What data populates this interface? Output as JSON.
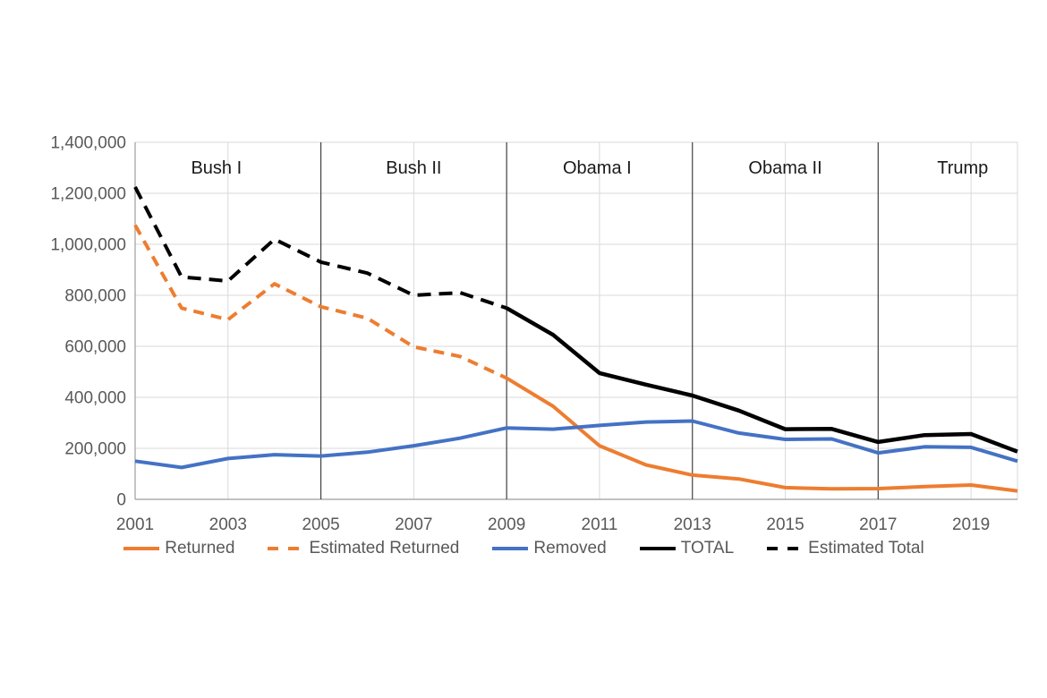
{
  "chart_data": {
    "type": "line",
    "title": "",
    "xlabel": "",
    "ylabel": "",
    "x_range": [
      2001,
      2020
    ],
    "ylim": [
      0,
      1400000
    ],
    "y_tick_step": 200000,
    "grid": true,
    "legend_position": "bottom",
    "y_tick_labels": [
      "0",
      "200,000",
      "400,000",
      "600,000",
      "800,000",
      "1,000,000",
      "1,200,000",
      "1,400,000"
    ],
    "x_tick_labels": [
      "2001",
      "2003",
      "2005",
      "2007",
      "2009",
      "2011",
      "2013",
      "2015",
      "2017",
      "2019"
    ],
    "x_tick_years": [
      2001,
      2003,
      2005,
      2007,
      2009,
      2011,
      2013,
      2015,
      2017,
      2019
    ],
    "light_grid_years": [
      2003,
      2007,
      2011,
      2015,
      2019,
      2020
    ],
    "series": [
      {
        "name": "Returned",
        "color": "#ED7D31",
        "dash": "solid",
        "start_year": 2009,
        "values": [
          475000,
          365000,
          210000,
          135000,
          95000,
          80000,
          46000,
          41000,
          42000,
          50000,
          56000,
          33000
        ]
      },
      {
        "name": "Estimated Returned",
        "color": "#ED7D31",
        "dash": "dashed",
        "dasharray": "12 8",
        "start_year": 2001,
        "values": [
          1075000,
          750000,
          705000,
          845000,
          755000,
          710000,
          598000,
          560000,
          475000
        ]
      },
      {
        "name": "Removed",
        "color": "#4472C4",
        "dash": "solid",
        "start_year": 2001,
        "values": [
          150000,
          125000,
          160000,
          175000,
          170000,
          185000,
          210000,
          240000,
          280000,
          275000,
          290000,
          303000,
          307000,
          260000,
          235000,
          237000,
          182000,
          206000,
          204000,
          150000
        ]
      },
      {
        "name": "TOTAL",
        "color": "#000000",
        "dash": "solid",
        "start_year": 2009,
        "values": [
          750000,
          645000,
          495000,
          450000,
          407000,
          348000,
          275000,
          276000,
          225000,
          252000,
          256000,
          187000
        ]
      },
      {
        "name": "Estimated Total",
        "color": "#000000",
        "dash": "dashed",
        "dasharray": "15 9",
        "start_year": 2001,
        "values": [
          1225000,
          872000,
          856000,
          1020000,
          930000,
          887000,
          800000,
          810000,
          750000
        ]
      }
    ],
    "annotations": {
      "era_dividers_x": [
        2005,
        2009,
        2013,
        2017
      ],
      "era_labels": [
        {
          "label": "Bush I",
          "center_year": 2002.75
        },
        {
          "label": "Bush II",
          "center_year": 2007.0
        },
        {
          "label": "Obama I",
          "center_year": 2010.95
        },
        {
          "label": "Obama II",
          "center_year": 2015.0
        },
        {
          "label": "Trump",
          "center_year": 2018.82
        }
      ]
    },
    "colors": {
      "gridline": "#D9D9D9",
      "axis_line": "#9E9E9E",
      "era_divider": "#404040",
      "tick_text": "#595959",
      "era_text": "#1A1A1A",
      "background": "#FFFFFF"
    }
  }
}
